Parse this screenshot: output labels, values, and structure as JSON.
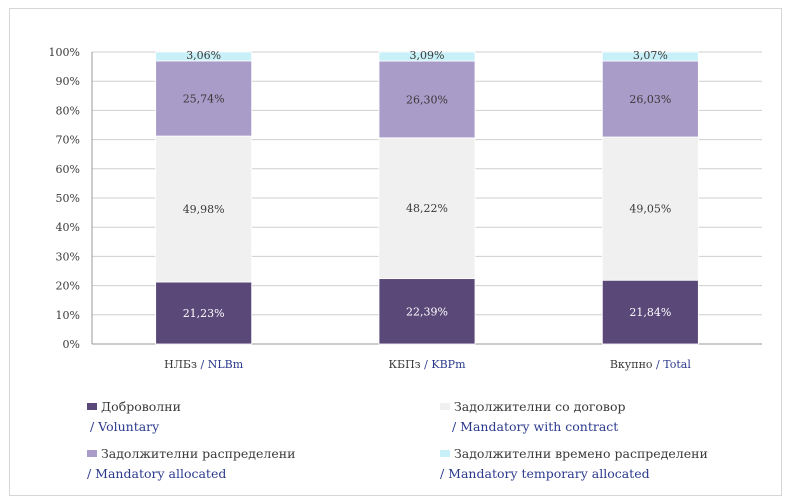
{
  "chart_data": {
    "type": "bar",
    "stacked": true,
    "categories": [
      {
        "main": "НЛБз",
        "en": "/ NLBm"
      },
      {
        "main": "КБПз",
        "en": "/ KBPm"
      },
      {
        "main": "Вкупно",
        "en": "/ Total"
      }
    ],
    "series": [
      {
        "key": "voluntary",
        "values": [
          21.23,
          22.39,
          21.84
        ],
        "labels": [
          "21,23%",
          "22,39%",
          "21,84%"
        ],
        "color": "#5a4878",
        "label_color": "#ffffff"
      },
      {
        "key": "contract",
        "values": [
          49.98,
          48.22,
          49.05
        ],
        "labels": [
          "49,98%",
          "48,22%",
          "49,05%"
        ],
        "color": "#f0f0f0",
        "label_color": "#3a3a3a"
      },
      {
        "key": "allocated",
        "values": [
          25.74,
          26.3,
          26.03
        ],
        "labels": [
          "25,74%",
          "26,30%",
          "26,03%"
        ],
        "color": "#aa9cc8",
        "label_color": "#3a3a3a"
      },
      {
        "key": "temporary",
        "values": [
          3.06,
          3.09,
          3.07
        ],
        "labels": [
          "3,06%",
          "3,09%",
          "3,07%"
        ],
        "color": "#c8f0f8",
        "label_color": "#3a3a3a"
      }
    ],
    "ylim": [
      0,
      100
    ],
    "yticks": [
      "0%",
      "10%",
      "20%",
      "30%",
      "40%",
      "50%",
      "60%",
      "70%",
      "80%",
      "90%",
      "100%"
    ],
    "grid": true,
    "legend_position": "bottom"
  },
  "legend": [
    {
      "main": "Доброволни",
      "en": "/ Voluntary",
      "color": "#5a4878"
    },
    {
      "main": "Задолжителни со договор",
      "en": "/ Mandatory with contract",
      "color": "#f0f0f0"
    },
    {
      "main": "Задолжителни распределени",
      "en": "/ Mandatory allocated",
      "color": "#aa9cc8"
    },
    {
      "main": "Задолжителни времено распределени",
      "en": "/ Mandatory temporary allocated",
      "color": "#c8f0f8"
    }
  ]
}
